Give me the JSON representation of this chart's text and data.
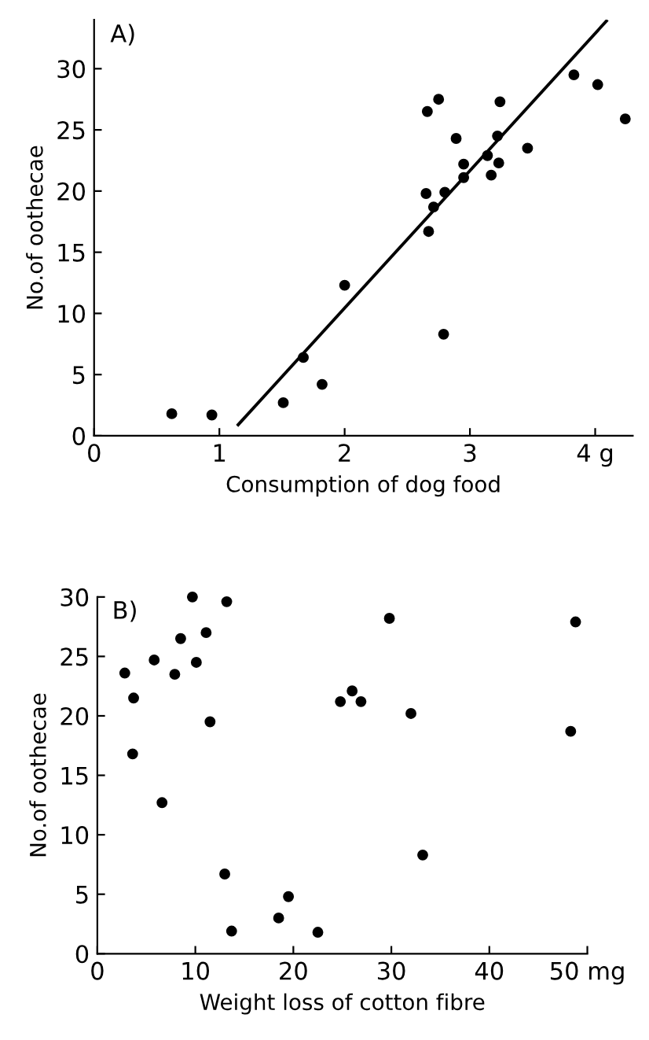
{
  "chart_data": [
    {
      "type": "scatter",
      "title": "A)",
      "xlabel": "Consumption of dog food",
      "ylabel": "No.of oothecae",
      "xlim": [
        0,
        4.3
      ],
      "ylim": [
        0,
        34
      ],
      "xticks": [
        0,
        1,
        2,
        3,
        {
          "value": 4,
          "label": "4 g"
        }
      ],
      "yticks": [
        0,
        5,
        10,
        15,
        20,
        25,
        30
      ],
      "grid": false,
      "series": [
        {
          "marker": "circle",
          "color": "#000000",
          "x": [
            0.62,
            0.94,
            1.51,
            1.67,
            1.82,
            2.0,
            2.66,
            2.75,
            2.65,
            2.67,
            2.71,
            2.8,
            2.79,
            2.89,
            2.95,
            2.95,
            3.14,
            3.17,
            3.22,
            3.23,
            3.24,
            3.46,
            3.83,
            4.02,
            4.24
          ],
          "values": [
            1.8,
            1.7,
            2.7,
            6.4,
            4.2,
            12.3,
            26.5,
            27.5,
            19.8,
            16.7,
            18.7,
            19.9,
            8.3,
            24.3,
            22.2,
            21.1,
            22.9,
            21.3,
            24.5,
            22.3,
            27.3,
            23.5,
            29.5,
            28.7,
            25.9
          ]
        },
        {
          "type": "line",
          "color": "#000000",
          "x": [
            1.15,
            4.09
          ],
          "values": [
            0.9,
            33.9
          ]
        }
      ]
    },
    {
      "type": "scatter",
      "title": "B)",
      "xlabel": "Weight loss of cotton fibre",
      "ylabel": "No.of oothecae",
      "xlim": [
        0,
        50
      ],
      "ylim": [
        0,
        30
      ],
      "xticks": [
        0,
        10,
        20,
        30,
        40,
        {
          "value": 50,
          "label": "50 mg"
        }
      ],
      "yticks": [
        0,
        5,
        10,
        15,
        20,
        25,
        30
      ],
      "grid": false,
      "marker": "circle",
      "series": [
        {
          "color": "#000000",
          "x": [
            2.8,
            3.7,
            3.6,
            5.8,
            6.6,
            7.9,
            8.5,
            9.7,
            10.1,
            11.1,
            11.5,
            13.2,
            13.0,
            13.7,
            18.5,
            19.5,
            22.5,
            24.8,
            26.0,
            26.9,
            29.8,
            32.0,
            33.2,
            48.3,
            48.8
          ],
          "values": [
            23.6,
            21.5,
            16.8,
            24.7,
            12.7,
            23.5,
            26.5,
            30.0,
            24.5,
            27.0,
            19.5,
            29.6,
            6.7,
            1.9,
            3.0,
            4.8,
            1.8,
            21.2,
            22.1,
            21.2,
            28.2,
            20.2,
            8.3,
            18.7,
            27.9
          ]
        }
      ]
    }
  ]
}
